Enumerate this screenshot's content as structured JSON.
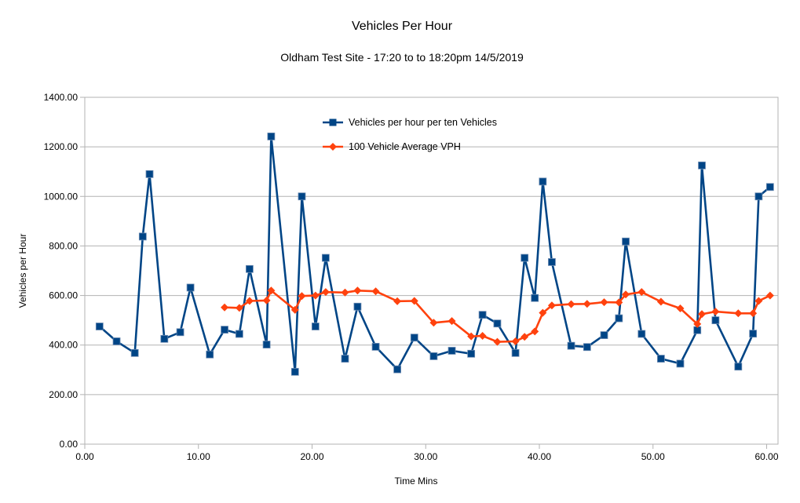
{
  "chart_data": {
    "type": "line",
    "title": "Vehicles Per Hour",
    "subtitle": "Oldham Test Site -  17:20 to to 18:20pm 14/5/2019",
    "xlabel": "Time Mins",
    "ylabel": "Vehicles per Hour",
    "xlim": [
      0,
      61
    ],
    "ylim": [
      0,
      1400
    ],
    "xticks": [
      0,
      10,
      20,
      30,
      40,
      50,
      60
    ],
    "yticks": [
      0,
      200,
      400,
      600,
      800,
      1000,
      1200,
      1400
    ],
    "xtick_labels": [
      "0.00",
      "10.00",
      "20.00",
      "30.00",
      "40.00",
      "50.00",
      "60.00"
    ],
    "ytick_labels": [
      "0.00",
      "200.00",
      "400.00",
      "600.00",
      "800.00",
      "1000.00",
      "1200.00",
      "1400.00"
    ],
    "grid": "horizontal",
    "legend_position": "top-center",
    "series": [
      {
        "name": "Vehicles per hour per ten Vehicles",
        "color": "#004586",
        "marker": "square",
        "points": [
          [
            1.3,
            475
          ],
          [
            2.8,
            415
          ],
          [
            4.4,
            368
          ],
          [
            5.1,
            838
          ],
          [
            5.7,
            1090
          ],
          [
            7.0,
            425
          ],
          [
            8.4,
            452
          ],
          [
            9.3,
            632
          ],
          [
            11.0,
            362
          ],
          [
            12.3,
            462
          ],
          [
            13.6,
            445
          ],
          [
            14.5,
            707
          ],
          [
            16.0,
            402
          ],
          [
            16.4,
            1242
          ],
          [
            18.5,
            292
          ],
          [
            19.1,
            1000
          ],
          [
            20.3,
            475
          ],
          [
            21.2,
            752
          ],
          [
            22.9,
            345
          ],
          [
            24.0,
            555
          ],
          [
            25.6,
            393
          ],
          [
            27.5,
            302
          ],
          [
            29.0,
            430
          ],
          [
            30.7,
            355
          ],
          [
            32.3,
            377
          ],
          [
            34.0,
            365
          ],
          [
            35.0,
            522
          ],
          [
            36.3,
            487
          ],
          [
            37.9,
            368
          ],
          [
            38.7,
            752
          ],
          [
            39.6,
            590
          ],
          [
            40.3,
            1060
          ],
          [
            41.1,
            735
          ],
          [
            42.8,
            397
          ],
          [
            44.2,
            392
          ],
          [
            45.7,
            440
          ],
          [
            47.0,
            508
          ],
          [
            47.6,
            818
          ],
          [
            49.0,
            445
          ],
          [
            50.7,
            345
          ],
          [
            52.4,
            325
          ],
          [
            53.9,
            460
          ],
          [
            54.3,
            1125
          ],
          [
            55.5,
            500
          ],
          [
            57.5,
            313
          ],
          [
            58.8,
            446
          ],
          [
            59.3,
            1000
          ],
          [
            60.3,
            1038
          ]
        ]
      },
      {
        "name": "100 Vehicle Average VPH",
        "color": "#ff420e",
        "marker": "diamond",
        "points": [
          [
            12.3,
            552
          ],
          [
            13.6,
            550
          ],
          [
            14.5,
            578
          ],
          [
            16.0,
            580
          ],
          [
            16.4,
            620
          ],
          [
            18.5,
            542
          ],
          [
            19.1,
            598
          ],
          [
            20.3,
            600
          ],
          [
            21.2,
            614
          ],
          [
            22.9,
            612
          ],
          [
            24.0,
            620
          ],
          [
            25.6,
            617
          ],
          [
            27.5,
            577
          ],
          [
            29.0,
            578
          ],
          [
            30.7,
            490
          ],
          [
            32.3,
            497
          ],
          [
            34.0,
            435
          ],
          [
            35.0,
            437
          ],
          [
            36.3,
            413
          ],
          [
            37.9,
            415
          ],
          [
            38.7,
            433
          ],
          [
            39.6,
            455
          ],
          [
            40.3,
            530
          ],
          [
            41.1,
            560
          ],
          [
            42.8,
            565
          ],
          [
            44.2,
            566
          ],
          [
            45.7,
            573
          ],
          [
            47.0,
            572
          ],
          [
            47.6,
            604
          ],
          [
            49.0,
            614
          ],
          [
            50.7,
            575
          ],
          [
            52.4,
            548
          ],
          [
            53.9,
            485
          ],
          [
            54.3,
            525
          ],
          [
            55.5,
            535
          ],
          [
            57.5,
            528
          ],
          [
            58.8,
            528
          ],
          [
            59.3,
            578
          ],
          [
            60.3,
            600
          ]
        ]
      }
    ]
  }
}
